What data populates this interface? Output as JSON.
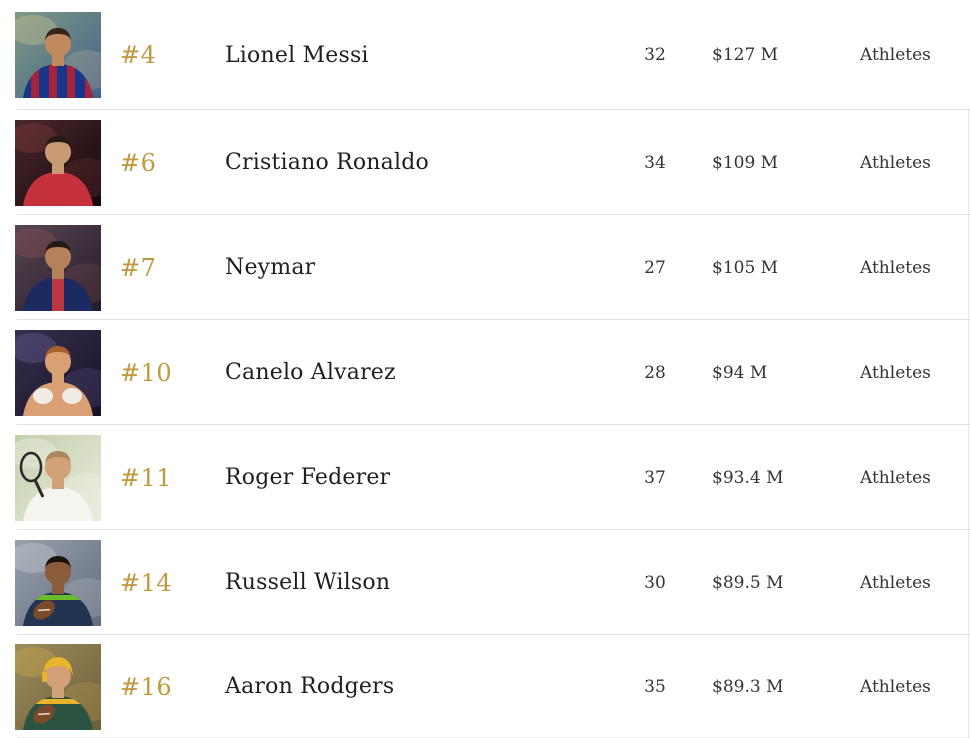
{
  "page": {
    "background": "#ffffff",
    "divider_color": "#e1e1e1",
    "rank_color": "#bf9b40",
    "name_color": "#1f1f1f",
    "text_color": "#333333"
  },
  "list": {
    "rows": [
      {
        "rank": "#4",
        "name": "Lionel Messi",
        "age": "32",
        "earnings": "$127 M",
        "category": "Athletes",
        "photo": {
          "description": "soccer-player-barcelona-striped-jersey",
          "bg1": "#7d9a83",
          "bg2": "#46618a",
          "blob": "#d8c794",
          "jersey": "#16368c",
          "accent": "#a5243c",
          "pattern": "stripes",
          "skin": "#c08a5e",
          "hair": "#33241a",
          "extra": "none"
        }
      },
      {
        "rank": "#6",
        "name": "Cristiano Ronaldo",
        "age": "34",
        "earnings": "$109 M",
        "category": "Athletes",
        "photo": {
          "description": "soccer-player-red-portugal-jersey",
          "bg1": "#4a272c",
          "bg2": "#16090c",
          "blob": "#8a4040",
          "jersey": "#c5323c",
          "accent": "#c5323c",
          "pattern": "solid",
          "skin": "#c89b72",
          "hair": "#261b12",
          "extra": "none"
        }
      },
      {
        "rank": "#7",
        "name": "Neymar",
        "age": "27",
        "earnings": "$105 M",
        "category": "Athletes",
        "photo": {
          "description": "soccer-player-psg-navy-jersey-red-stripe",
          "bg1": "#584551",
          "bg2": "#241c2b",
          "blob": "#91505a",
          "jersey": "#1b2a60",
          "accent": "#bb3742",
          "pattern": "center",
          "skin": "#b5815a",
          "hair": "#241a13",
          "extra": "none"
        }
      },
      {
        "rank": "#10",
        "name": "Canelo Alvarez",
        "age": "28",
        "earnings": "$94 M",
        "category": "Athletes",
        "photo": {
          "description": "boxer-white-gloves-ring",
          "bg1": "#37304e",
          "bg2": "#161126",
          "blob": "#7263a0",
          "jersey": "#d9a074",
          "accent": "#c0392b",
          "pattern": "solid",
          "skin": "#d9a074",
          "hair": "#a8602e",
          "extra": "gloves"
        }
      },
      {
        "rank": "#11",
        "name": "Roger Federer",
        "age": "37",
        "earnings": "$93.4 M",
        "category": "Athletes",
        "photo": {
          "description": "tennis-player-white-kit-racket",
          "bg1": "#c3cfa9",
          "bg2": "#e9ecdf",
          "blob": "#f7f7f3",
          "jersey": "#f6f4ee",
          "accent": "#f6f4ee",
          "pattern": "solid",
          "skin": "#d3a178",
          "hair": "#a8875f",
          "extra": "racket"
        }
      },
      {
        "rank": "#14",
        "name": "Russell Wilson",
        "age": "30",
        "earnings": "$89.5 M",
        "category": "Athletes",
        "photo": {
          "description": "football-quarterback-navy-seahawks-jersey",
          "bg1": "#98a0ac",
          "bg2": "#636c7c",
          "blob": "#cdd2d9",
          "jersey": "#233450",
          "accent": "#6abe28",
          "pattern": "trim",
          "skin": "#8a5c3a",
          "hair": "#191209",
          "extra": "football"
        }
      },
      {
        "rank": "#16",
        "name": "Aaron Rodgers",
        "age": "35",
        "earnings": "$89.3 M",
        "category": "Athletes",
        "photo": {
          "description": "football-quarterback-green-packers-yellow-helmet",
          "bg1": "#9d8c5c",
          "bg2": "#6c5e3b",
          "blob": "#d2ab47",
          "jersey": "#2a5340",
          "accent": "#e9b32c",
          "pattern": "trim",
          "skin": "#d3a178",
          "hair": "#6b4f35",
          "helmet": "#e9b32c",
          "extra": "football"
        }
      }
    ]
  }
}
